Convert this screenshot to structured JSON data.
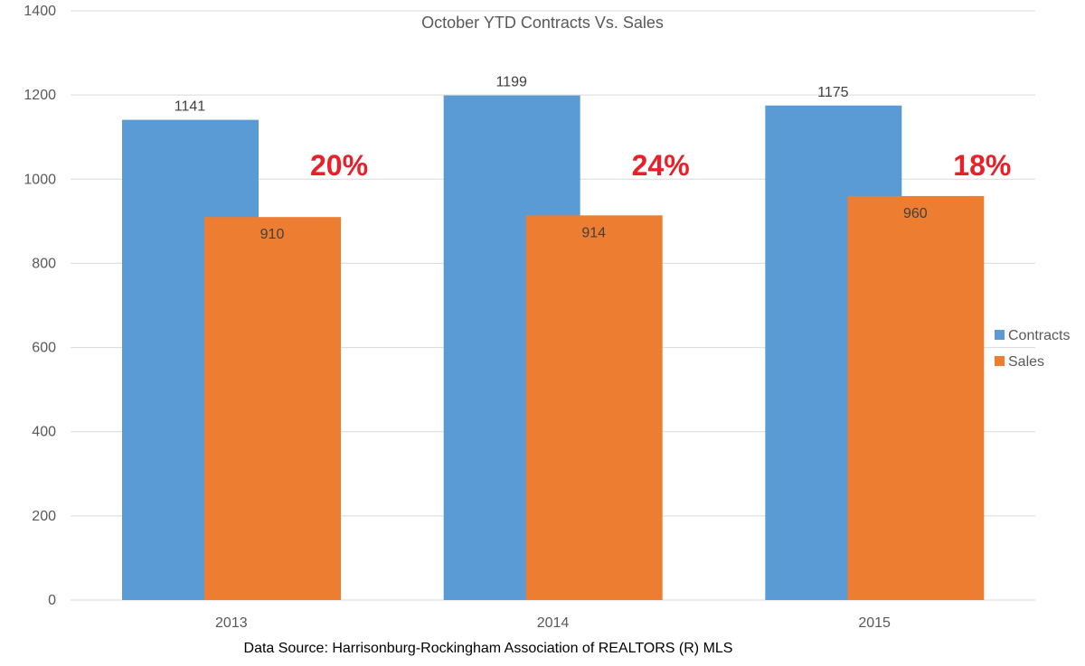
{
  "chart_data": {
    "type": "bar",
    "title": "October YTD Contracts Vs. Sales",
    "categories": [
      "2013",
      "2014",
      "2015"
    ],
    "series": [
      {
        "name": "Contracts",
        "color": "#5B9BD5",
        "values": [
          1141,
          1199,
          1175
        ]
      },
      {
        "name": "Sales",
        "color": "#ED7D31",
        "values": [
          910,
          914,
          960
        ]
      }
    ],
    "annotations": [
      "20%",
      "24%",
      "18%"
    ],
    "annotation_color": "#E8202A",
    "ylim": [
      0,
      1400
    ],
    "yticks": [
      "0",
      "200",
      "400",
      "600",
      "800",
      "1000",
      "1200",
      "1400"
    ],
    "grid": true,
    "legend_position": "right",
    "source_note": "Data Source: Harrisonburg-Rockingham Association of REALTORS (R) MLS"
  }
}
